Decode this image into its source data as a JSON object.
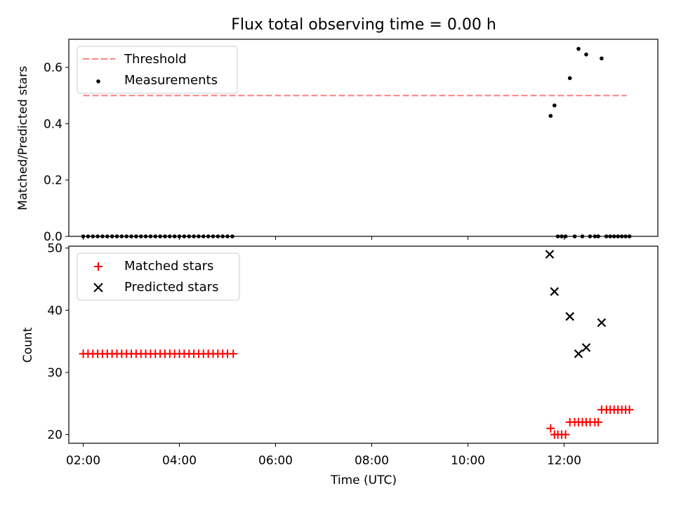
{
  "chart_data": [
    {
      "type": "scatter",
      "title": "Flux total observing time = 0.00 h",
      "xlabel": "",
      "ylabel": "Matched/Predicted stars",
      "xlim": [
        1.7,
        13.95
      ],
      "ylim": [
        0.0,
        0.7
      ],
      "yticks": [
        0.0,
        0.2,
        0.4,
        0.6
      ],
      "ytick_labels": [
        "0.0",
        "0.2",
        "0.4",
        "0.6"
      ],
      "legend": {
        "placement": "top-left",
        "entries": [
          "Threshold",
          "Measurements"
        ]
      },
      "threshold": {
        "name": "Threshold",
        "value": 0.5,
        "x_range": [
          2.0,
          13.3
        ],
        "color": "#ff7f7f"
      },
      "series": [
        {
          "name": "Measurements",
          "color": "#000000",
          "points": [
            [
              2.0,
              0
            ],
            [
              2.1,
              0
            ],
            [
              2.2,
              0
            ],
            [
              2.3,
              0
            ],
            [
              2.4,
              0
            ],
            [
              2.5,
              0
            ],
            [
              2.6,
              0
            ],
            [
              2.7,
              0
            ],
            [
              2.8,
              0
            ],
            [
              2.9,
              0
            ],
            [
              3.0,
              0
            ],
            [
              3.1,
              0
            ],
            [
              3.2,
              0
            ],
            [
              3.3,
              0
            ],
            [
              3.4,
              0
            ],
            [
              3.5,
              0
            ],
            [
              3.6,
              0
            ],
            [
              3.7,
              0
            ],
            [
              3.8,
              0
            ],
            [
              3.9,
              0
            ],
            [
              4.0,
              0
            ],
            [
              4.1,
              0
            ],
            [
              4.2,
              0
            ],
            [
              4.3,
              0
            ],
            [
              4.4,
              0
            ],
            [
              4.5,
              0
            ],
            [
              4.6,
              0
            ],
            [
              4.7,
              0
            ],
            [
              4.8,
              0
            ],
            [
              4.9,
              0
            ],
            [
              5.0,
              0
            ],
            [
              5.1,
              0
            ],
            [
              11.72,
              0.428
            ],
            [
              11.8,
              0.465
            ],
            [
              11.87,
              0
            ],
            [
              11.95,
              0
            ],
            [
              12.03,
              0
            ],
            [
              12.12,
              0.562
            ],
            [
              12.22,
              0
            ],
            [
              12.3,
              0.666
            ],
            [
              12.38,
              0
            ],
            [
              12.46,
              0.646
            ],
            [
              12.54,
              0
            ],
            [
              12.64,
              0
            ],
            [
              12.71,
              0
            ],
            [
              12.78,
              0.632
            ],
            [
              12.88,
              0
            ],
            [
              12.96,
              0
            ],
            [
              13.04,
              0
            ],
            [
              13.12,
              0
            ],
            [
              13.2,
              0
            ],
            [
              13.28,
              0
            ],
            [
              13.36,
              0
            ]
          ]
        }
      ]
    },
    {
      "type": "scatter",
      "title": "",
      "xlabel": "Time (UTC)",
      "ylabel": "Count",
      "xlim": [
        1.7,
        13.95
      ],
      "ylim": [
        18.6,
        50.3
      ],
      "xticks": [
        2,
        4,
        6,
        8,
        10,
        12
      ],
      "xtick_labels": [
        "02:00",
        "04:00",
        "06:00",
        "08:00",
        "10:00",
        "12:00"
      ],
      "yticks": [
        20,
        30,
        40,
        50
      ],
      "ytick_labels": [
        "20",
        "30",
        "40",
        "50"
      ],
      "legend": {
        "placement": "top-left",
        "entries": [
          "Matched stars",
          "Predicted stars"
        ]
      },
      "series": [
        {
          "name": "Matched stars",
          "marker": "plus",
          "color": "#ff0000",
          "points": [
            [
              2.0,
              33
            ],
            [
              2.1,
              33
            ],
            [
              2.2,
              33
            ],
            [
              2.3,
              33
            ],
            [
              2.4,
              33
            ],
            [
              2.5,
              33
            ],
            [
              2.6,
              33
            ],
            [
              2.7,
              33
            ],
            [
              2.8,
              33
            ],
            [
              2.9,
              33
            ],
            [
              3.0,
              33
            ],
            [
              3.1,
              33
            ],
            [
              3.2,
              33
            ],
            [
              3.3,
              33
            ],
            [
              3.4,
              33
            ],
            [
              3.5,
              33
            ],
            [
              3.6,
              33
            ],
            [
              3.7,
              33
            ],
            [
              3.8,
              33
            ],
            [
              3.9,
              33
            ],
            [
              4.0,
              33
            ],
            [
              4.1,
              33
            ],
            [
              4.2,
              33
            ],
            [
              4.3,
              33
            ],
            [
              4.4,
              33
            ],
            [
              4.5,
              33
            ],
            [
              4.6,
              33
            ],
            [
              4.7,
              33
            ],
            [
              4.8,
              33
            ],
            [
              4.9,
              33
            ],
            [
              5.0,
              33
            ],
            [
              5.12,
              33
            ],
            [
              11.72,
              21
            ],
            [
              11.8,
              20
            ],
            [
              11.87,
              20
            ],
            [
              11.95,
              20
            ],
            [
              12.03,
              20
            ],
            [
              12.12,
              22
            ],
            [
              12.22,
              22
            ],
            [
              12.3,
              22
            ],
            [
              12.38,
              22
            ],
            [
              12.46,
              22
            ],
            [
              12.54,
              22
            ],
            [
              12.64,
              22
            ],
            [
              12.71,
              22
            ],
            [
              12.78,
              24
            ],
            [
              12.88,
              24
            ],
            [
              12.96,
              24
            ],
            [
              13.04,
              24
            ],
            [
              13.12,
              24
            ],
            [
              13.2,
              24
            ],
            [
              13.28,
              24
            ],
            [
              13.36,
              24
            ]
          ]
        },
        {
          "name": "Predicted stars",
          "marker": "x",
          "color": "#000000",
          "points": [
            [
              11.7,
              49
            ],
            [
              11.8,
              43
            ],
            [
              12.12,
              39
            ],
            [
              12.3,
              33
            ],
            [
              12.46,
              34
            ],
            [
              12.78,
              38
            ]
          ]
        }
      ]
    }
  ]
}
